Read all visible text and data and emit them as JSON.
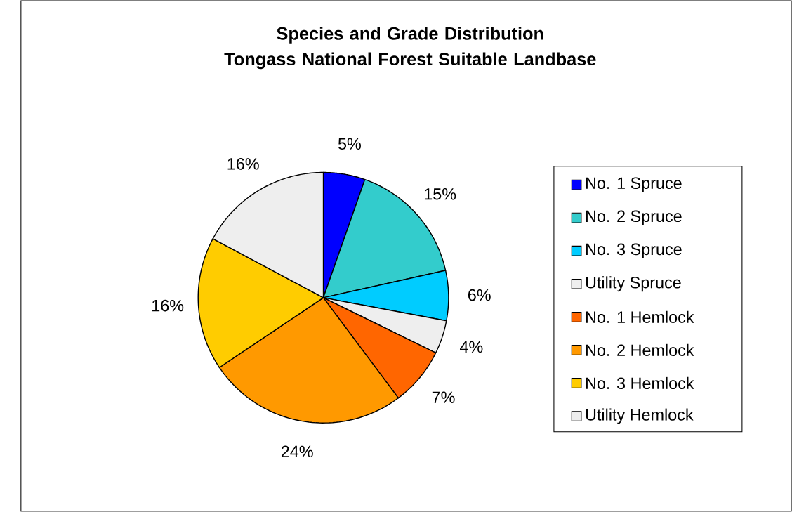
{
  "chart_data": {
    "type": "pie",
    "title": "Species and Grade Distribution\nTongass National Forest Suitable Landbase",
    "categories": [
      "No. 1 Spruce",
      "No. 2 Spruce",
      "No. 3 Spruce",
      "Utility Spruce",
      "No. 1 Hemlock",
      "No. 2 Hemlock",
      "No. 3 Hemlock",
      "Utility Hemlock"
    ],
    "values": [
      5,
      15,
      6,
      4,
      7,
      24,
      16,
      16
    ],
    "colors": [
      "#0000ff",
      "#33cccc",
      "#00ccff",
      "#eeeeee",
      "#ff6600",
      "#ff9900",
      "#ffcc00",
      "#eeeeee"
    ],
    "value_labels": [
      "5%",
      "15%",
      "6%",
      "4%",
      "7%",
      "24%",
      "16%",
      "16%"
    ],
    "legend": "right"
  }
}
